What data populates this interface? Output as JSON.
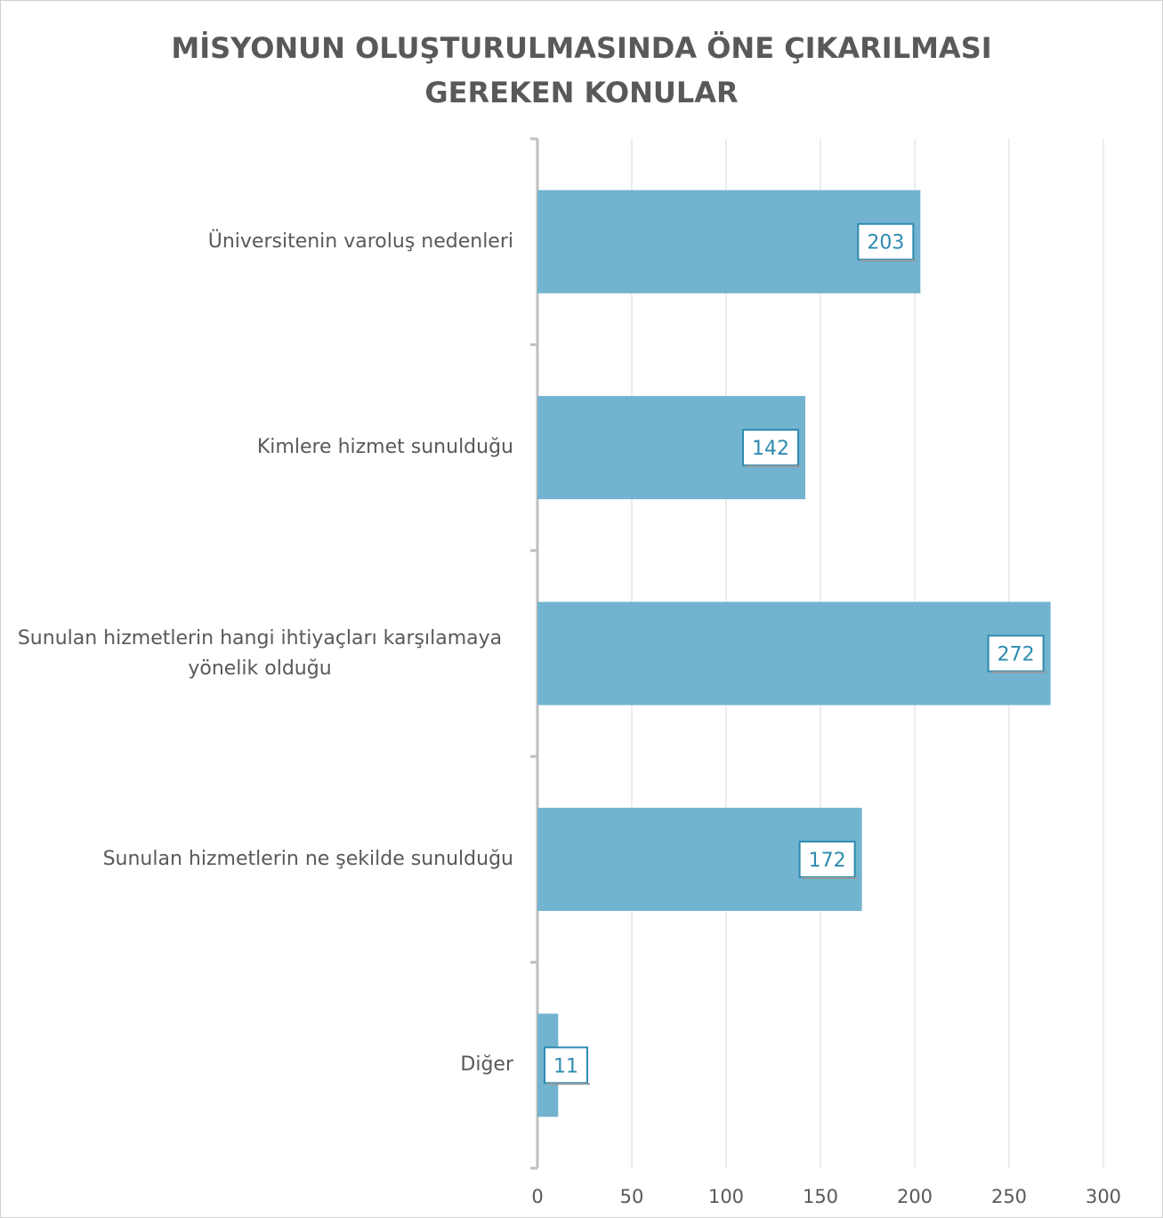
{
  "chart_data": {
    "type": "bar",
    "orientation": "horizontal",
    "title": "MİSYONUN OLUŞTURULMASINDA ÖNE ÇIKARILMASI GEREKEN KONULAR",
    "categories": [
      "Üniversitenin varoluş nedenleri",
      "Kimlere hizmet sunulduğu",
      "Sunulan hizmetlerin hangi ihtiyaçları karşılamaya yönelik olduğu",
      "Sunulan hizmetlerin ne şekilde sunulduğu",
      "Diğer"
    ],
    "values": [
      203,
      142,
      272,
      172,
      11
    ],
    "color": "#72b3cf",
    "xlim": [
      0,
      300
    ],
    "xticks": [
      0,
      50,
      100,
      150,
      200,
      250,
      300
    ],
    "grid": true
  }
}
